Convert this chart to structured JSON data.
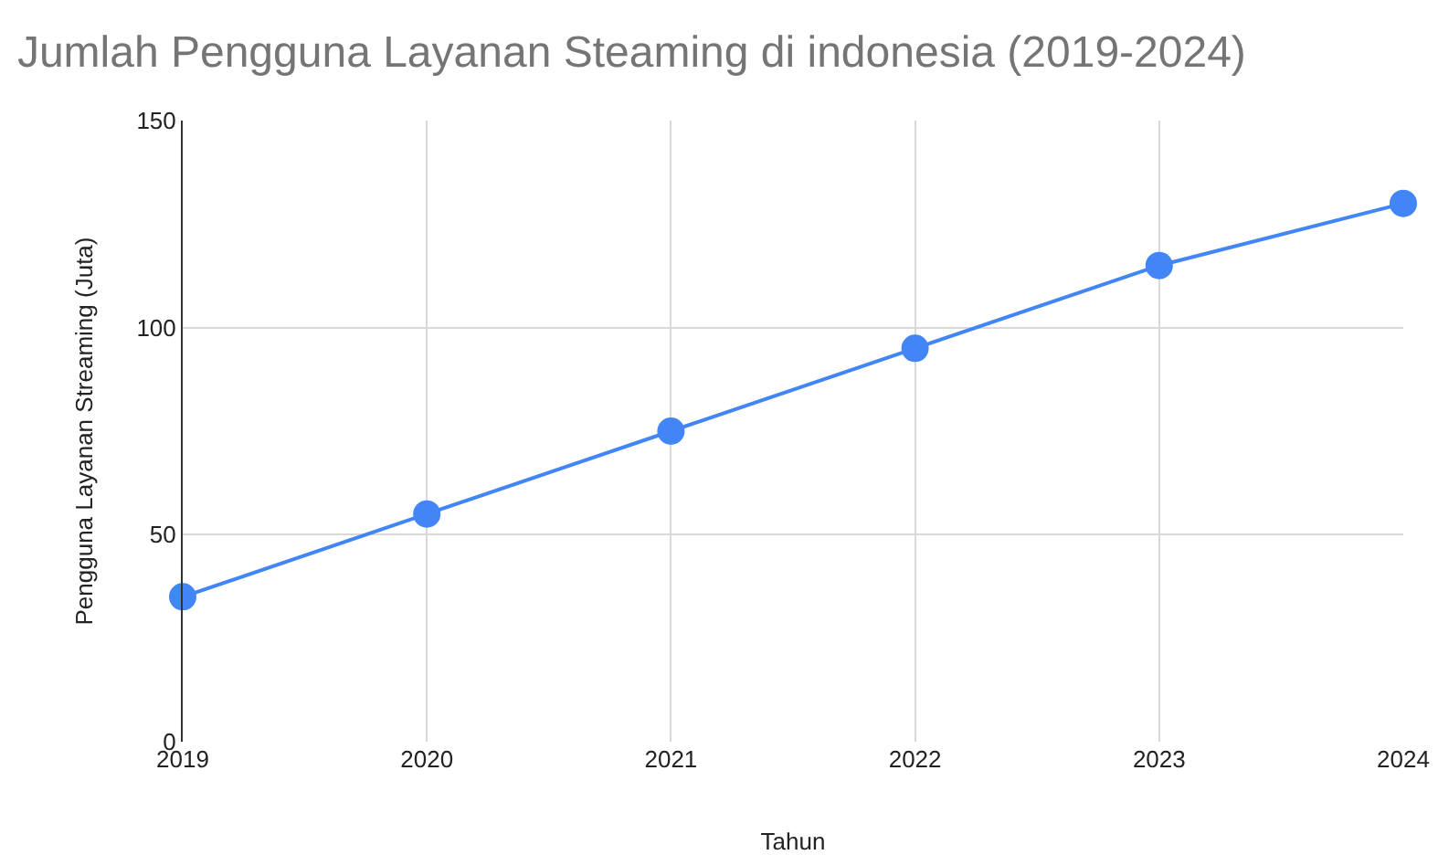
{
  "chart_data": {
    "type": "line",
    "title": "Jumlah Pengguna Layanan Steaming di indonesia (2019-2024)",
    "xlabel": "Tahun",
    "ylabel": "Pengguna Layanan Streaming (Juta)",
    "x": [
      2019,
      2020,
      2021,
      2022,
      2023,
      2024
    ],
    "series": [
      {
        "color": "#4285f4",
        "values": [
          35,
          55,
          75,
          95,
          115,
          130
        ]
      }
    ],
    "xlim": [
      2019,
      2024
    ],
    "xticks": [
      2019,
      2020,
      2021,
      2022,
      2023,
      2024
    ],
    "ylim": [
      0,
      150
    ],
    "yticks": [
      0,
      50,
      100,
      150
    ],
    "grid": true,
    "marker": "circle",
    "line_style": "solid"
  }
}
